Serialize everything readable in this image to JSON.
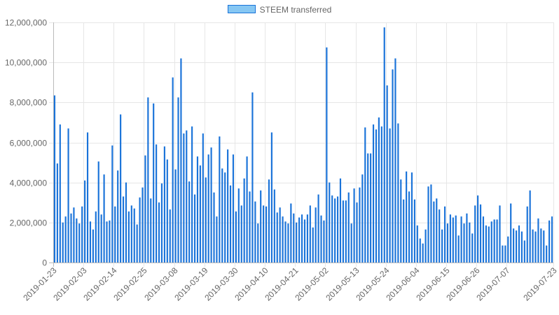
{
  "chart_data": {
    "type": "bar",
    "title": "",
    "xlabel": "",
    "ylabel": "",
    "legend": {
      "position": "top",
      "entries": [
        "STEEM transferred"
      ]
    },
    "grid": true,
    "ylim": [
      0,
      12000000
    ],
    "y_ticks": [
      "0",
      "2,000,000",
      "4,000,000",
      "6,000,000",
      "8,000,000",
      "10,000,000",
      "12,000,000"
    ],
    "x_tick_labels": [
      "2019-01-23",
      "2019-02-03",
      "2019-02-14",
      "2019-02-25",
      "2019-03-08",
      "2019-03-19",
      "2019-03-30",
      "2019-04-10",
      "2019-04-21",
      "2019-05-02",
      "2019-05-13",
      "2019-05-24",
      "2019-06-04",
      "2019-06-15",
      "2019-06-26",
      "2019-07-07",
      "2019-07-23"
    ],
    "x_start": "2019-01-23",
    "x_end": "2019-07-23",
    "colors": {
      "bar": "#1a73d9",
      "bar_fill": "rgba(54,162,235,0.6)",
      "grid": "#e6e6e6",
      "axis": "#bbbbbb"
    },
    "series": [
      {
        "name": "STEEM transferred",
        "values": [
          8350000,
          4950000,
          6900000,
          2000000,
          2300000,
          6700000,
          2450000,
          2750000,
          2200000,
          1950000,
          2800000,
          4100000,
          6500000,
          2050000,
          1650000,
          2550000,
          5050000,
          2400000,
          4400000,
          2050000,
          2100000,
          5850000,
          2800000,
          4600000,
          7400000,
          3300000,
          4000000,
          2550000,
          2850000,
          2700000,
          1900000,
          3250000,
          3750000,
          5350000,
          8250000,
          3200000,
          7950000,
          5900000,
          3000000,
          3950000,
          5800000,
          5150000,
          2650000,
          9250000,
          4650000,
          8250000,
          10200000,
          6450000,
          6600000,
          4050000,
          6800000,
          3400000,
          5300000,
          4850000,
          6450000,
          4250000,
          5400000,
          5750000,
          3500000,
          2300000,
          6300000,
          4700000,
          4500000,
          5650000,
          3850000,
          5400000,
          2550000,
          3700000,
          2850000,
          4200000,
          5300000,
          3550000,
          8500000,
          3050000,
          1950000,
          3600000,
          2850000,
          2800000,
          4150000,
          6500000,
          3650000,
          2500000,
          2750000,
          2300000,
          2050000,
          1950000,
          2950000,
          2450000,
          2000000,
          2250000,
          2400000,
          2150000,
          2400000,
          2850000,
          1750000,
          2750000,
          3400000,
          2350000,
          2100000,
          10750000,
          4000000,
          3350000,
          3200000,
          3300000,
          4200000,
          3100000,
          3100000,
          3500000,
          1950000,
          3700000,
          3000000,
          3750000,
          4400000,
          6750000,
          5450000,
          5450000,
          6900000,
          6650000,
          7250000,
          6800000,
          11750000,
          8850000,
          6700000,
          9650000,
          10200000,
          6950000,
          4150000,
          3150000,
          4550000,
          3550000,
          4500000,
          3150000,
          1850000,
          1200000,
          950000,
          1650000,
          3800000,
          3900000,
          3050000,
          3200000,
          2650000,
          1650000,
          2800000,
          1950000,
          2400000,
          2250000,
          2350000,
          1350000,
          2300000,
          1950000,
          2450000,
          2000000,
          1450000,
          2850000,
          3350000,
          2900000,
          2300000,
          1850000,
          1800000,
          2050000,
          2150000,
          2150000,
          2850000,
          850000,
          850000,
          1300000,
          2950000,
          1700000,
          1600000,
          1850000,
          1550000,
          1100000,
          2800000,
          3600000,
          1650000,
          1550000,
          2200000,
          1700000,
          1600000,
          850000,
          2100000,
          2300000
        ]
      }
    ]
  }
}
